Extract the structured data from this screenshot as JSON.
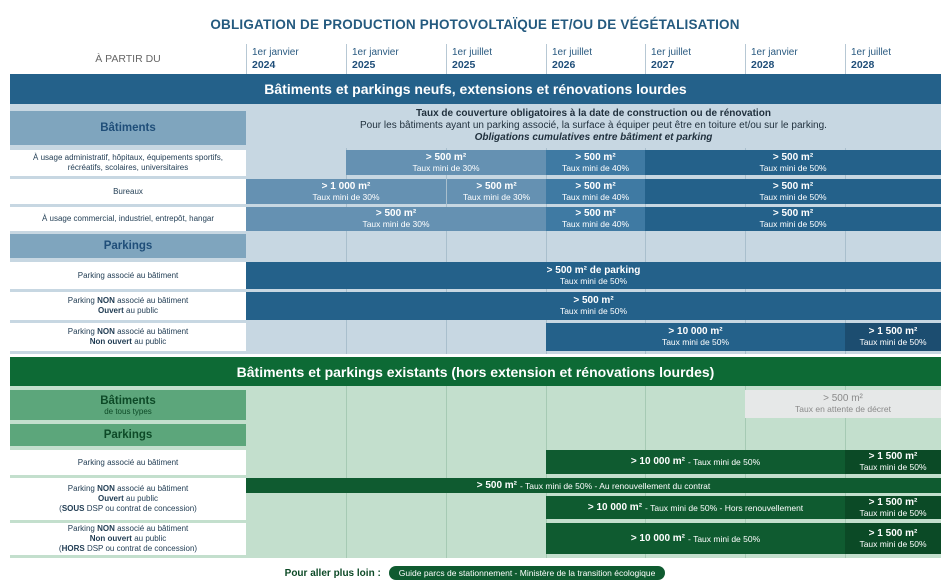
{
  "title": "OBLIGATION DE PRODUCTION PHOTOVOLTAÏQUE ET/OU DE VÉGÉTALISATION",
  "since_label": "À PARTIR DU",
  "dates": [
    {
      "day": "1er janvier",
      "year": "2024"
    },
    {
      "day": "1er janvier",
      "year": "2025"
    },
    {
      "day": "1er juillet",
      "year": "2025"
    },
    {
      "day": "1er juillet",
      "year": "2026"
    },
    {
      "day": "1er juillet",
      "year": "2027"
    },
    {
      "day": "1er janvier",
      "year": "2028"
    },
    {
      "day": "1er juillet",
      "year": "2028"
    }
  ],
  "new": {
    "header": "Bâtiments et parkings neufs, extensions et rénovations lourdes",
    "buildings_label": "Bâtiments",
    "info": [
      "Taux de couverture obligatoires à la date de construction ou de rénovation",
      "Pour les bâtiments ayant un parking associé, la surface à équiper peut être en toiture et/ou sur le parking.",
      "Obligations cumulatives entre bâtiment et parking"
    ],
    "rows": [
      {
        "label": [
          "À usage administratif, hôpitaux, équipements sportifs,",
          "récréatifs, scolaires, universitaires"
        ],
        "cells": [
          {
            "area": "> 500 m²",
            "rate": "Taux mini de 30%"
          },
          {
            "area": "> 500 m²",
            "rate": "Taux mini de 40%"
          },
          {
            "area": "> 500 m²",
            "rate": "Taux mini de 50%"
          }
        ]
      },
      {
        "label": [
          "Bureaux"
        ],
        "cells": [
          {
            "area": "> 1 000 m²",
            "rate": "Taux mini de 30%"
          },
          {
            "area": "> 500 m²",
            "rate": "Taux mini de 30%"
          },
          {
            "area": "> 500 m²",
            "rate": "Taux mini de 40%"
          },
          {
            "area": "> 500 m²",
            "rate": "Taux mini de 50%"
          }
        ]
      },
      {
        "label": [
          "À usage commercial, industriel, entrepôt, hangar"
        ],
        "cells": [
          {
            "area": "> 500 m²",
            "rate": "Taux mini de 30%"
          },
          {
            "area": "> 500 m²",
            "rate": "Taux mini de 40%"
          },
          {
            "area": "> 500 m²",
            "rate": "Taux mini de 50%"
          }
        ]
      }
    ],
    "parkings_label": "Parkings",
    "prows": [
      {
        "label": "Parking associé au bâtiment",
        "cells": [
          {
            "area": "> 500 m² de parking",
            "rate": "Taux mini de 50%"
          }
        ]
      },
      {
        "label_a": "Parking ",
        "label_b": "NON",
        "label_c": " associé au bâtiment",
        "label2_b": "Ouvert",
        "label2_c": " au public",
        "cells": [
          {
            "area": "> 500 m²",
            "rate": "Taux mini de 50%"
          }
        ]
      },
      {
        "label_a": "Parking ",
        "label_b": "NON",
        "label_c": " associé au bâtiment",
        "label2_b": "Non ouvert",
        "label2_c": " au public",
        "cells": [
          {
            "area": "> 10 000 m²",
            "rate": "Taux mini de 50%"
          },
          {
            "area": "> 1 500 m²",
            "rate": "Taux mini de 50%"
          }
        ]
      }
    ]
  },
  "existing": {
    "header": "Bâtiments et parkings existants (hors extension et rénovations lourdes)",
    "buildings_label": "Bâtiments",
    "buildings_sub": "de tous types",
    "buildings_cell": {
      "area": "> 500 m²",
      "rate": "Taux en attente de décret"
    },
    "parkings_label": "Parkings",
    "r1": {
      "label": "Parking associé au bâtiment",
      "c1_area": "> 10 000 m²",
      "c1_rate": " - Taux mini de 50%",
      "c2_area": "> 1 500 m²",
      "c2_rate": "Taux mini de 50%"
    },
    "r2": {
      "l1a": "Parking ",
      "l1b": "NON",
      "l1c": " associé au bâtiment",
      "l2b": "Ouvert",
      "l2c": " au public",
      "l3a": "(",
      "l3b": "SOUS",
      "l3c": " DSP ou contrat de concession)",
      "full_area": "> 500 m²",
      "full_rate": " - Taux mini de 50% - Au renouvellement du contrat",
      "c1_area": "> 10 000 m²",
      "c1_rate": " - Taux mini de 50% - Hors renouvellement",
      "c2_area": "> 1 500 m²",
      "c2_rate": "Taux mini de 50%"
    },
    "r3": {
      "l1a": "Parking ",
      "l1b": "NON",
      "l1c": " associé au bâtiment",
      "l2b": "Non ouvert",
      "l2c": " au public",
      "l3a": "(",
      "l3b": "HORS",
      "l3c": " DSP ou contrat de concession)",
      "c1_area": "> 10 000 m²",
      "c1_rate": " - Taux mini de 50%",
      "c2_area": "> 1 500 m²",
      "c2_rate": "Taux mini de 50%"
    }
  },
  "footer": {
    "label": "Pour aller plus loin :",
    "link": "Guide parcs de stationnement - Ministère de la transition écologique"
  },
  "colors": {
    "blue": "#24618a",
    "green": "#0d6a35"
  }
}
